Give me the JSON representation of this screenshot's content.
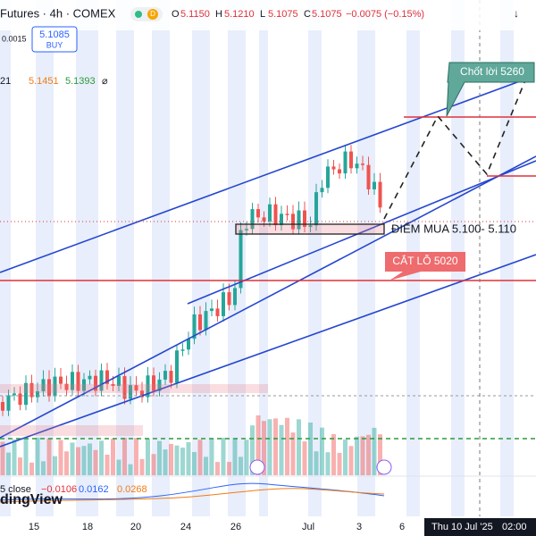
{
  "header": {
    "symbol": "Futures · 4h · COMEX",
    "badge": "D",
    "open_label": "O",
    "open": "5.1150",
    "high_label": "H",
    "high": "5.1210",
    "low_label": "L",
    "low": "5.1075",
    "close_label": "C",
    "close": "5.1075",
    "change": "−0.0075 (−0.15%)"
  },
  "buy_box": {
    "price": "5.1085",
    "label": "BUY",
    "spread": "0.0015"
  },
  "ma_row": {
    "prefix": "21",
    "ma1": "5.1451",
    "ma2": "5.1393",
    "icon": "⌀"
  },
  "annotations": {
    "take_profit": "Chốt lời 5260",
    "buy_zone": "ĐIỂM MUA 5.100- 5.110",
    "stop_loss": "CẮT LỖ 5020"
  },
  "macd": {
    "label": "5 close",
    "v1": "−0.0106",
    "v2": "0.0162",
    "v3": "0.0268"
  },
  "logo": "dingView",
  "x_axis": [
    "15",
    "18",
    "20",
    "24",
    "26",
    "Jul",
    "3",
    "6"
  ],
  "crosshair": {
    "date": "Thu 10 Jul '25",
    "time": "02:00"
  }
}
